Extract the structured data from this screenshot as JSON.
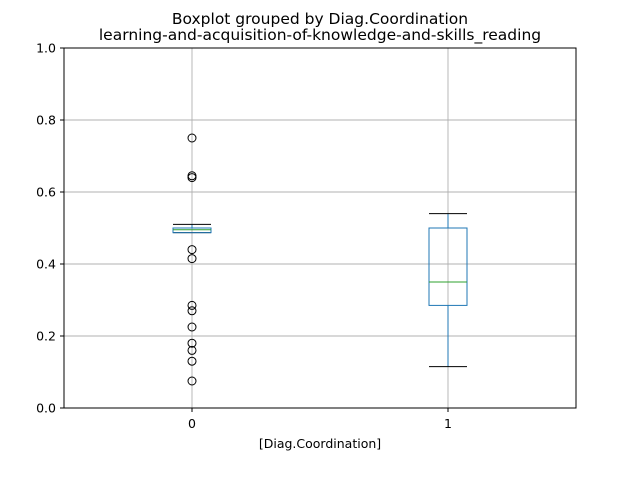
{
  "chart_data": {
    "type": "boxplot",
    "suptitle": "Boxplot grouped by Diag.Coordination",
    "title": "learning-and-acquisition-of-knowledge-and-skills_reading",
    "xlabel": "[Diag.Coordination]",
    "ylabel": "",
    "ylim": [
      0,
      1
    ],
    "yticks": [
      "0.0",
      "0.2",
      "0.4",
      "0.6",
      "0.8",
      "1.0"
    ],
    "grid": true,
    "categories": [
      "0",
      "1"
    ],
    "boxes": [
      {
        "category": "0",
        "whisker_low": 0.487,
        "q1": 0.487,
        "median": 0.495,
        "q3": 0.5,
        "whisker_high": 0.51,
        "fliers": [
          0.75,
          0.645,
          0.64,
          0.44,
          0.415,
          0.285,
          0.27,
          0.225,
          0.18,
          0.16,
          0.13,
          0.075
        ]
      },
      {
        "category": "1",
        "whisker_low": 0.115,
        "q1": 0.285,
        "median": 0.35,
        "q3": 0.5,
        "whisker_high": 0.54,
        "fliers": []
      }
    ],
    "colors": {
      "box": "#1f77b4",
      "median": "#2ca02c",
      "whisker": "#1f77b4",
      "cap": "#000000",
      "grid": "#b0b0b0"
    }
  }
}
